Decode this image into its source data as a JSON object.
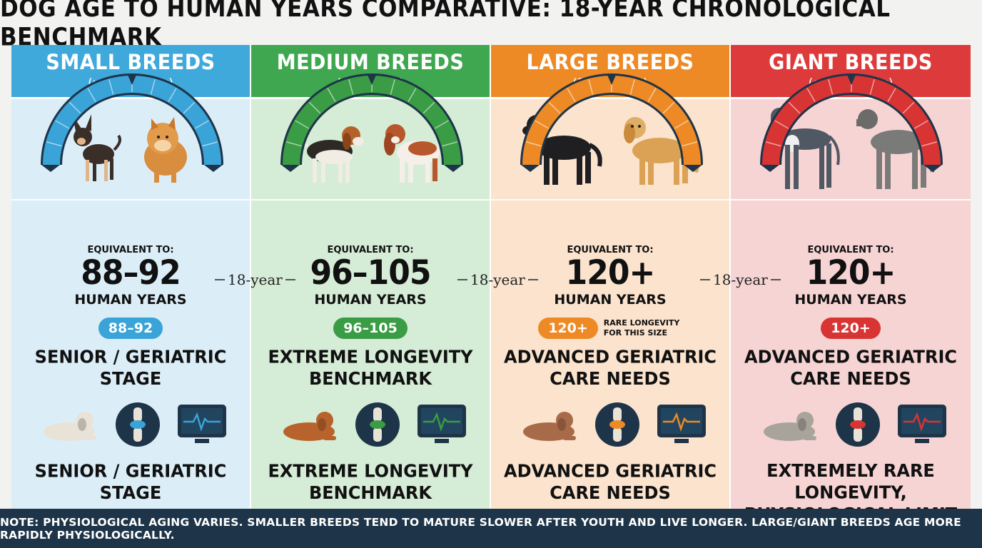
{
  "title": "DOG AGE TO HUMAN YEARS COMPARATIVE: 18-YEAR CHRONOLOGICAL BENCHMARK",
  "connector_label": "18-year",
  "columns": [
    {
      "name": "SMALL BREEDS",
      "sub": "(under 20 lbs)",
      "head_color": "#3fa9dc",
      "body_color": "#dbeef8",
      "gauge_color": "#3aa3d8",
      "equivalent_label": "EQUIVALENT TO:",
      "value": "88–92",
      "unit": "HUMAN YEARS",
      "pill": "88–92",
      "pill_note": "",
      "stage_1": [
        "SENIOR / GERIATRIC",
        "STAGE"
      ],
      "stage_2": [
        "SENIOR / GERIATRIC",
        "STAGE"
      ],
      "icons": [
        "lying-dog-icon",
        "joint-icon",
        "heart-monitor-icon"
      ]
    },
    {
      "name": "MEDIUM BREEDS",
      "sub": "(21–50 lbs)",
      "head_color": "#3fa74f",
      "body_color": "#d5ecd6",
      "gauge_color": "#3a9c45",
      "equivalent_label": "EQUIVALENT TO:",
      "value": "96–105",
      "unit": "HUMAN YEARS",
      "pill": "96–105",
      "pill_note": "",
      "stage_1": [
        "EXTREME LONGEVITY",
        "BENCHMARK"
      ],
      "stage_2": [
        "EXTREME LONGEVITY",
        "BENCHMARK"
      ],
      "icons": [
        "lying-dog-icon",
        "joint-icon",
        "heart-monitor-icon"
      ]
    },
    {
      "name": "LARGE BREEDS",
      "sub": "(51–100 lbs)",
      "head_color": "#ee8a25",
      "body_color": "#fbe3cd",
      "gauge_color": "#ee8a25",
      "equivalent_label": "EQUIVALENT TO:",
      "value": "120+",
      "unit": "HUMAN YEARS",
      "pill": "120+",
      "pill_note": "RARE LONGEVITY FOR THIS SIZE",
      "stage_1": [
        "ADVANCED GERIATRIC",
        "CARE  NEEDS"
      ],
      "stage_2": [
        "ADVANCED GERIATRIC",
        "CARE NEEDS"
      ],
      "icons": [
        "lying-dog-icon",
        "joint-icon",
        "heart-monitor-icon"
      ]
    },
    {
      "name": "GIANT BREEDS",
      "sub": "(over 100 lbs)",
      "head_color": "#dd3b3b",
      "body_color": "#f7d4d4",
      "gauge_color": "#d93434",
      "equivalent_label": "EQUIVALENT TO:",
      "value": "120+",
      "unit": "HUMAN YEARS",
      "pill": "120+",
      "pill_note": "",
      "stage_1": [
        "ADVANCED GERIATRIC",
        "CARE NEEDS"
      ],
      "stage_2": [
        "EXTREMELY RARE LONGEVITY,",
        "PHYSIOLOGICAL LIMIT"
      ],
      "icons": [
        "lying-dog-icon",
        "joint-icon",
        "heart-monitor-icon"
      ]
    }
  ],
  "footer": "NOTE: PHYSIOLOGICAL AGING VARIES. SMALLER BREEDS TEND TO MATURE SLOWER AFTER YOUTH AND LIVE LONGER. LARGE/GIANT BREEDS AGE MORE RAPIDLY PHYSIOLOGICALLY."
}
